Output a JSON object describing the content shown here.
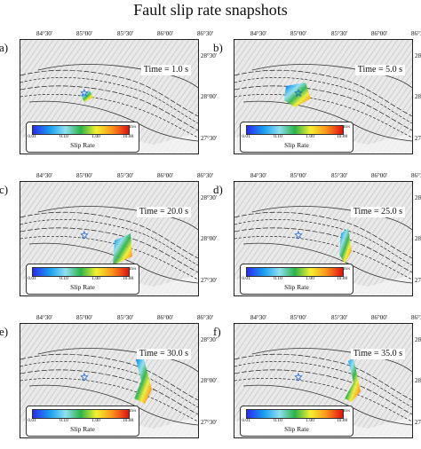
{
  "title": "Fault slip rate snapshots",
  "lon_ticks": [
    "84°30'",
    "85°00'",
    "85°30'",
    "86°00'",
    "86°30'"
  ],
  "lat_ticks": [
    "28°30'",
    "28°00'",
    "27°30'"
  ],
  "colorbar": {
    "label": "Slip Rate",
    "unit": "m/s",
    "ticks": [
      "0.01",
      "0.10",
      "1.00",
      "10.00"
    ],
    "colors": [
      "#2a2af0",
      "#1aa0f0",
      "#8fe0f0",
      "#2cb34a",
      "#f1f12e",
      "#ff9a1a",
      "#e01010"
    ]
  },
  "panels": [
    {
      "letter": "a)",
      "time": "Time = 1.0 s"
    },
    {
      "letter": "b)",
      "time": "Time = 5.0 s"
    },
    {
      "letter": "c)",
      "time": "Time = 20.0 s"
    },
    {
      "letter": "d)",
      "time": "Time = 25.0 s"
    },
    {
      "letter": "e)",
      "time": "Time = 30.0 s"
    },
    {
      "letter": "f)",
      "time": "Time = 35.0 s"
    }
  ],
  "map_colors": {
    "terrain": "#e9e9e9",
    "fault_lines": "#222222",
    "epicenter_star": "#1a5fd0"
  }
}
